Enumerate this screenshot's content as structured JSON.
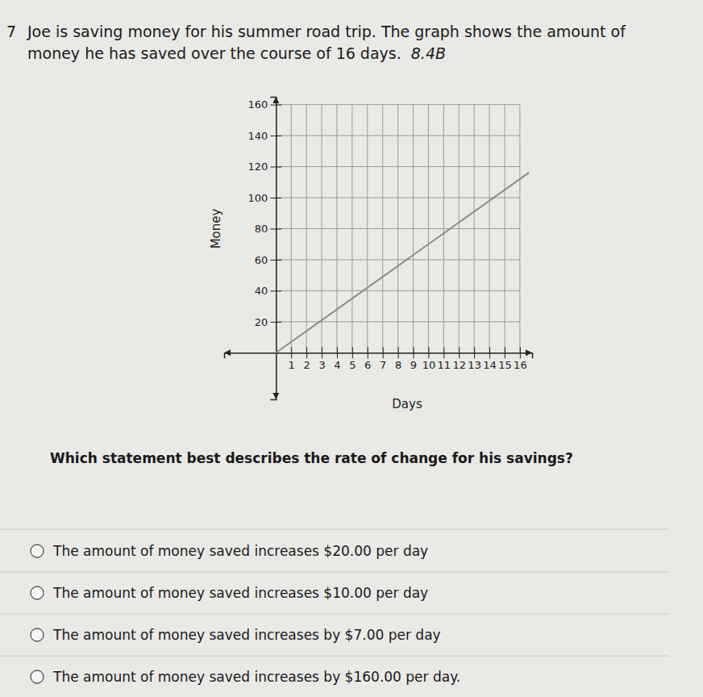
{
  "question": {
    "number": "7",
    "text_lines": [
      "Joe is saving money for his summer road trip.  The graph shows the amount of",
      "money he has saved over the course of 16 days."
    ],
    "standard": "8.4B"
  },
  "chart_data": {
    "type": "line",
    "x_label": "Days",
    "y_label": "Money",
    "x": [
      0,
      16.6
    ],
    "values": [
      0,
      116.2
    ],
    "color": "#8a8a8a",
    "xlim": [
      -3.4,
      16.8
    ],
    "ylim": [
      -30,
      165
    ],
    "xticks": [
      1,
      2,
      3,
      4,
      5,
      6,
      7,
      8,
      9,
      10,
      11,
      12,
      13,
      14,
      15,
      16
    ],
    "yticks": [
      20,
      40,
      60,
      80,
      100,
      120,
      140,
      160
    ],
    "grid": true
  },
  "prompt": "Which statement best describes the rate of change for his savings?",
  "choices": [
    "The amount of money saved increases $20.00 per day",
    "The amount of money saved increases $10.00 per day",
    "The amount of money saved increases by $7.00 per day",
    "The amount of money saved increases by $160.00 per day."
  ]
}
